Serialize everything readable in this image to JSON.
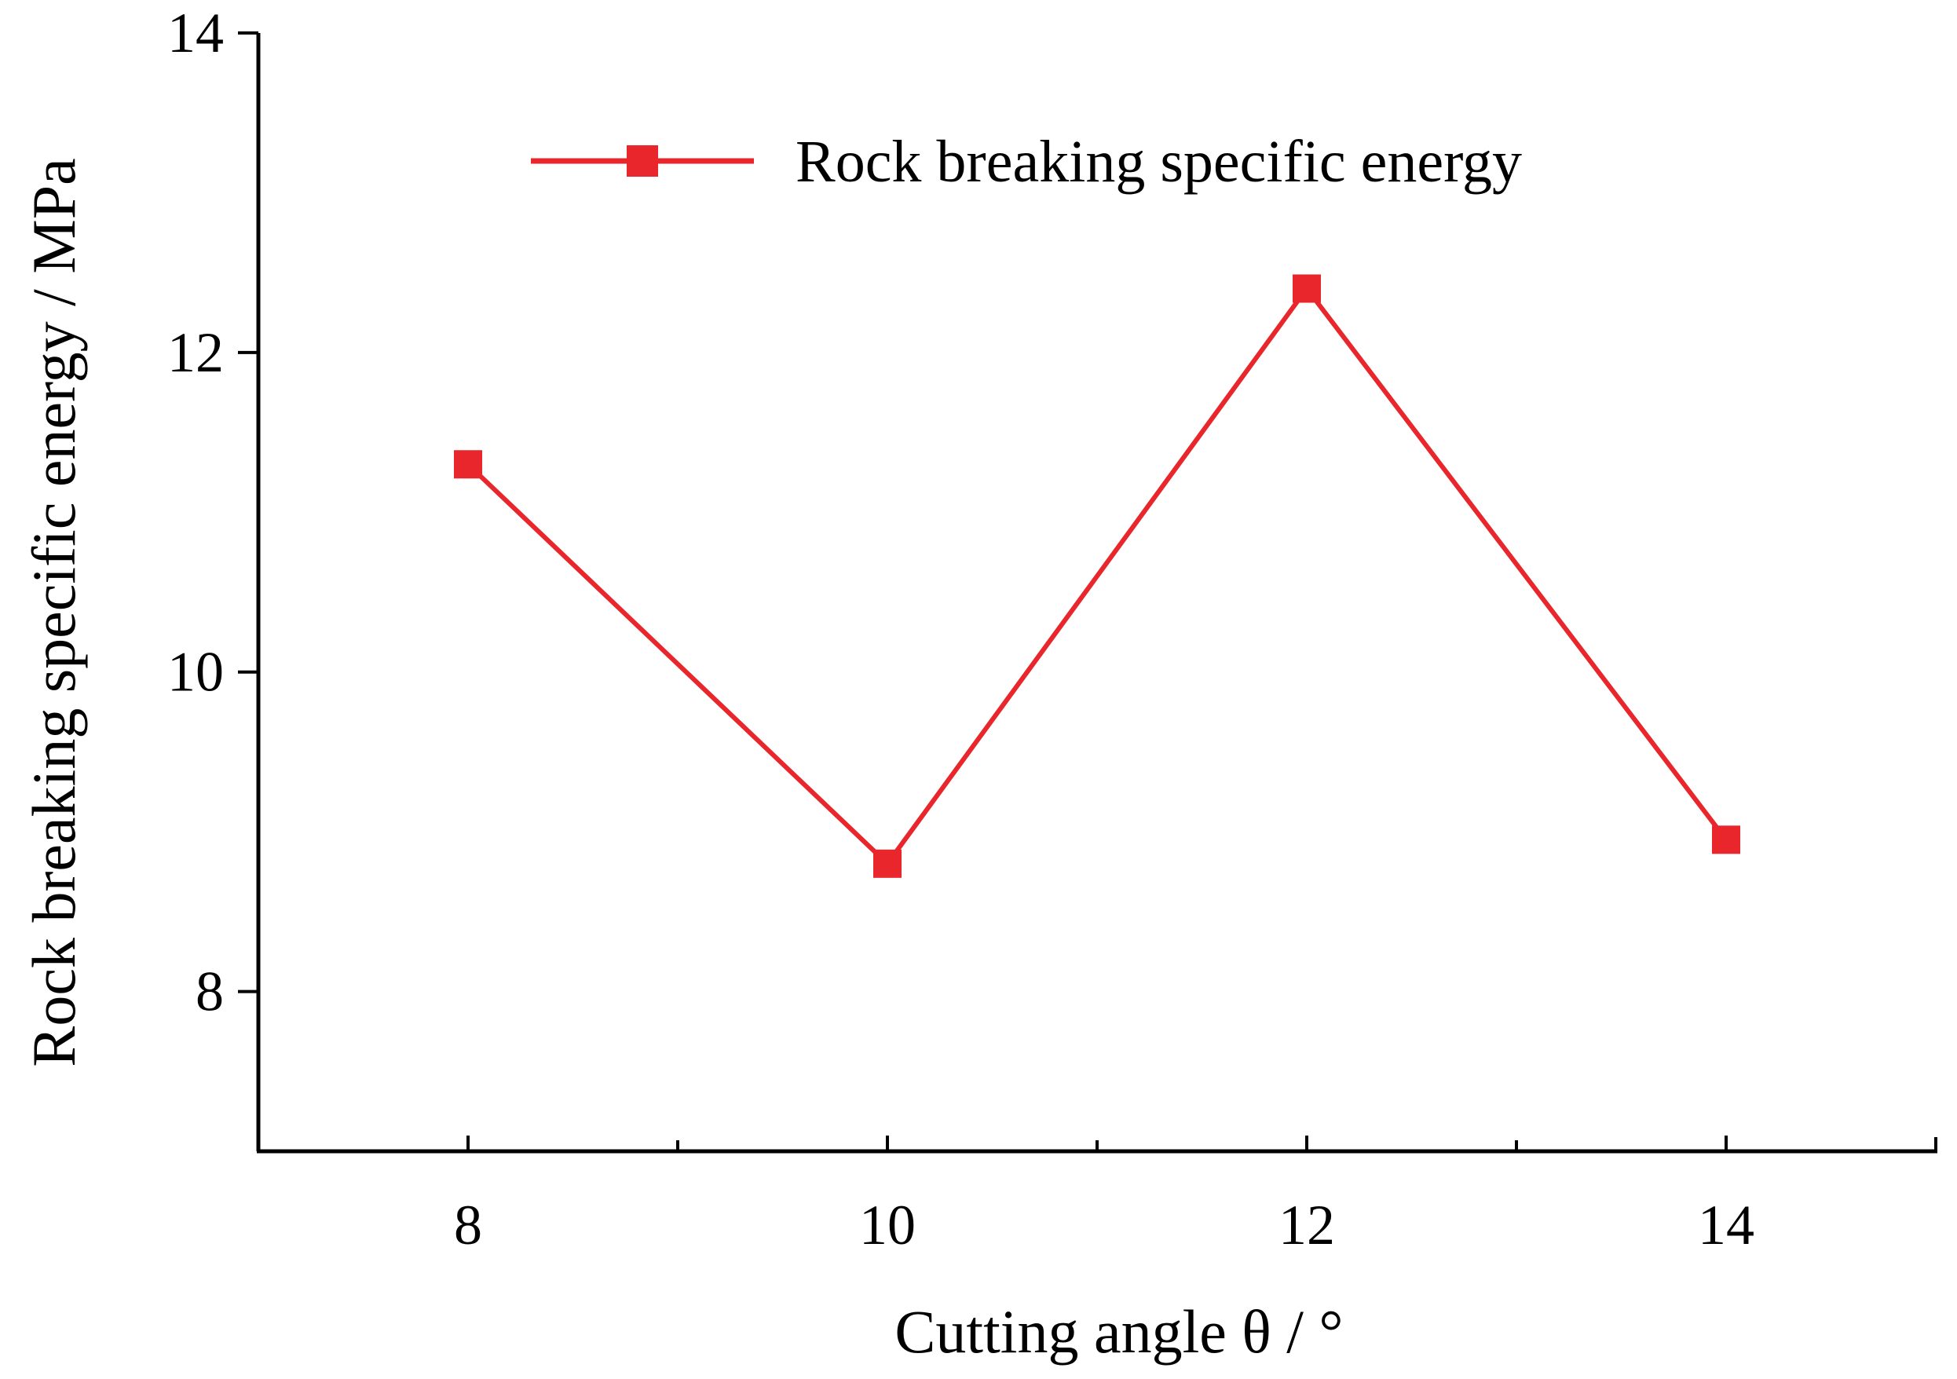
{
  "chart_data": {
    "type": "line",
    "title": "",
    "xlabel": "Cutting angle θ / °",
    "ylabel": "Rock breaking specific energy / MPa",
    "xlim": [
      7,
      15
    ],
    "ylim": [
      7,
      14
    ],
    "x_ticks": [
      8,
      10,
      12,
      14
    ],
    "x_minor_ticks": [
      9,
      11,
      13
    ],
    "y_ticks": [
      8,
      10,
      12,
      14
    ],
    "grid": false,
    "legend_position": "top-center",
    "series": [
      {
        "name": "Rock breaking specific energy",
        "color": "#e8262b",
        "marker": "square",
        "x": [
          8,
          10,
          12,
          14
        ],
        "values": [
          11.3,
          8.8,
          12.4,
          8.95
        ]
      }
    ]
  }
}
